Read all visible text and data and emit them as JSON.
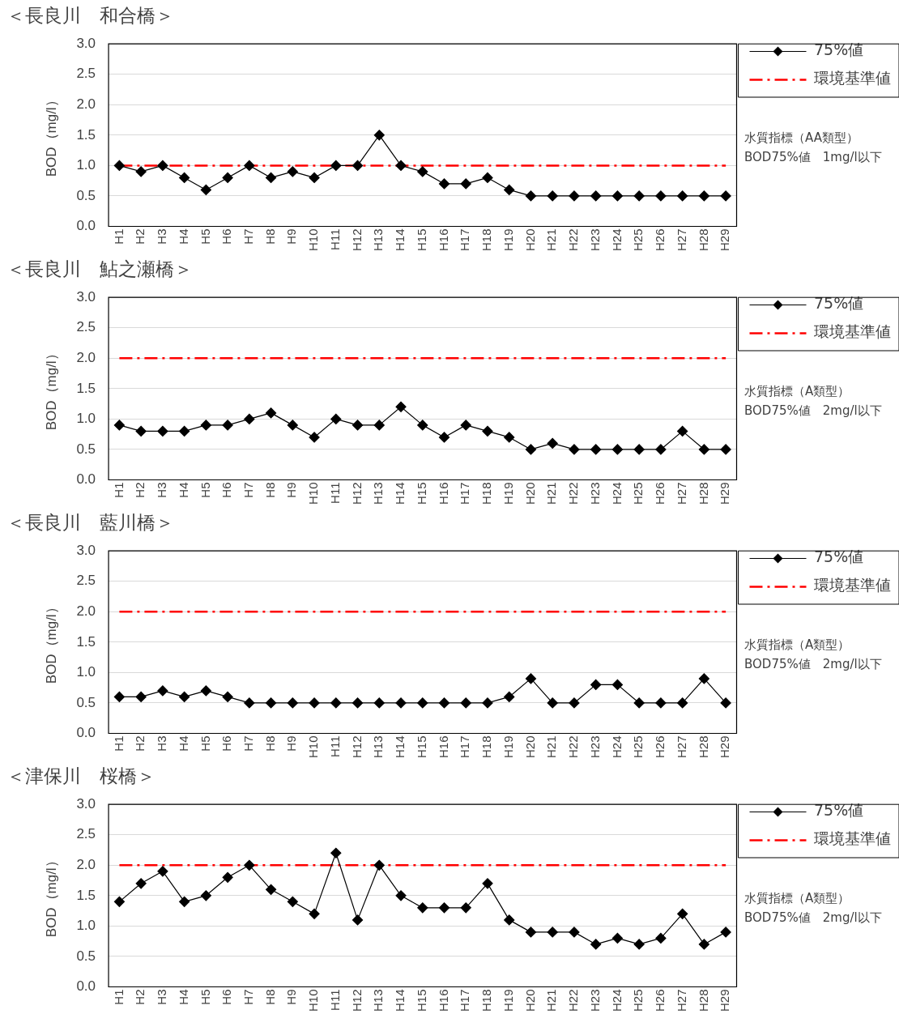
{
  "chart_data": [
    {
      "type": "line",
      "title": "＜長良川　和合橋＞",
      "ylabel": "BOD（mg/l）",
      "categories": [
        "H1",
        "H2",
        "H3",
        "H4",
        "H5",
        "H6",
        "H7",
        "H8",
        "H9",
        "H10",
        "H11",
        "H12",
        "H13",
        "H14",
        "H15",
        "H16",
        "H17",
        "H18",
        "H19",
        "H20",
        "H21",
        "H22",
        "H23",
        "H24",
        "H25",
        "H26",
        "H27",
        "H28",
        "H29"
      ],
      "series": [
        {
          "name": "75%値",
          "color": "#000000",
          "marker": "diamond",
          "values": [
            1.0,
            0.9,
            1.0,
            0.8,
            0.6,
            0.8,
            1.0,
            0.8,
            0.9,
            0.8,
            1.0,
            1.0,
            1.5,
            1.0,
            0.9,
            0.7,
            0.7,
            0.8,
            0.6,
            0.5,
            0.5,
            0.5,
            0.5,
            0.5,
            0.5,
            0.5,
            0.5,
            0.5,
            0.5
          ]
        },
        {
          "name": "環境基準値",
          "color": "#ff0000",
          "marker": "none",
          "line_style": "dashed",
          "values": [
            1.0,
            1.0,
            1.0,
            1.0,
            1.0,
            1.0,
            1.0,
            1.0,
            1.0,
            1.0,
            1.0,
            1.0,
            1.0,
            1.0,
            1.0,
            1.0,
            1.0,
            1.0,
            1.0,
            1.0,
            1.0,
            1.0,
            1.0,
            1.0,
            1.0,
            1.0,
            1.0,
            1.0,
            1.0
          ]
        }
      ],
      "ylim": [
        0,
        3
      ],
      "yticks": [
        {
          "value": 0,
          "label": "0.0"
        },
        {
          "value": 0.5,
          "label": "0.5"
        },
        {
          "value": 1,
          "label": "1.0"
        },
        {
          "value": 1.5,
          "label": "1.5"
        },
        {
          "value": 2,
          "label": "2.0"
        },
        {
          "value": 2.5,
          "label": "2.5"
        },
        {
          "value": 3,
          "label": "3.0"
        }
      ],
      "grid": "y",
      "legend": "right",
      "annotations": [
        "水質指標（AA類型）",
        "BOD75%値　1mg/l以下"
      ]
    },
    {
      "type": "line",
      "title": "＜長良川　鮎之瀬橋＞",
      "ylabel": "BOD（mg/l）",
      "categories": [
        "H1",
        "H2",
        "H3",
        "H4",
        "H5",
        "H6",
        "H7",
        "H8",
        "H9",
        "H10",
        "H11",
        "H12",
        "H13",
        "H14",
        "H15",
        "H16",
        "H17",
        "H18",
        "H19",
        "H20",
        "H21",
        "H22",
        "H23",
        "H24",
        "H25",
        "H26",
        "H27",
        "H28",
        "H29"
      ],
      "series": [
        {
          "name": "75%値",
          "color": "#000000",
          "marker": "diamond",
          "values": [
            0.9,
            0.8,
            0.8,
            0.8,
            0.9,
            0.9,
            1.0,
            1.1,
            0.9,
            0.7,
            1.0,
            0.9,
            0.9,
            1.2,
            0.9,
            0.7,
            0.9,
            0.8,
            0.7,
            0.5,
            0.6,
            0.5,
            0.5,
            0.5,
            0.5,
            0.5,
            0.8,
            0.5,
            0.5
          ]
        },
        {
          "name": "環境基準値",
          "color": "#ff0000",
          "marker": "none",
          "line_style": "dashed",
          "values": [
            2.0,
            2.0,
            2.0,
            2.0,
            2.0,
            2.0,
            2.0,
            2.0,
            2.0,
            2.0,
            2.0,
            2.0,
            2.0,
            2.0,
            2.0,
            2.0,
            2.0,
            2.0,
            2.0,
            2.0,
            2.0,
            2.0,
            2.0,
            2.0,
            2.0,
            2.0,
            2.0,
            2.0,
            2.0
          ]
        }
      ],
      "ylim": [
        0,
        3
      ],
      "yticks": [
        {
          "value": 0,
          "label": "0.0"
        },
        {
          "value": 0.5,
          "label": "0.5"
        },
        {
          "value": 1,
          "label": "1.0"
        },
        {
          "value": 1.5,
          "label": "1.5"
        },
        {
          "value": 2,
          "label": "2.0"
        },
        {
          "value": 2.5,
          "label": "2.5"
        },
        {
          "value": 3,
          "label": "3.0"
        }
      ],
      "grid": "y",
      "legend": "right",
      "annotations": [
        "水質指標（A類型）",
        "BOD75%値　2mg/l以下"
      ]
    },
    {
      "type": "line",
      "title": "＜長良川　藍川橋＞",
      "ylabel": "BOD（mg/l）",
      "categories": [
        "H1",
        "H2",
        "H3",
        "H4",
        "H5",
        "H6",
        "H7",
        "H8",
        "H9",
        "H10",
        "H11",
        "H12",
        "H13",
        "H14",
        "H15",
        "H16",
        "H17",
        "H18",
        "H19",
        "H20",
        "H21",
        "H22",
        "H23",
        "H24",
        "H25",
        "H26",
        "H27",
        "H28",
        "H29"
      ],
      "series": [
        {
          "name": "75%値",
          "color": "#000000",
          "marker": "diamond",
          "values": [
            0.6,
            0.6,
            0.7,
            0.6,
            0.7,
            0.6,
            0.5,
            0.5,
            0.5,
            0.5,
            0.5,
            0.5,
            0.5,
            0.5,
            0.5,
            0.5,
            0.5,
            0.5,
            0.6,
            0.9,
            0.5,
            0.5,
            0.8,
            0.8,
            0.5,
            0.5,
            0.5,
            0.9,
            0.5
          ]
        },
        {
          "name": "環境基準値",
          "color": "#ff0000",
          "marker": "none",
          "line_style": "dashed",
          "values": [
            2.0,
            2.0,
            2.0,
            2.0,
            2.0,
            2.0,
            2.0,
            2.0,
            2.0,
            2.0,
            2.0,
            2.0,
            2.0,
            2.0,
            2.0,
            2.0,
            2.0,
            2.0,
            2.0,
            2.0,
            2.0,
            2.0,
            2.0,
            2.0,
            2.0,
            2.0,
            2.0,
            2.0,
            2.0
          ]
        }
      ],
      "ylim": [
        0,
        3
      ],
      "yticks": [
        {
          "value": 0,
          "label": "0.0"
        },
        {
          "value": 0.5,
          "label": "0.5"
        },
        {
          "value": 1,
          "label": "1.0"
        },
        {
          "value": 1.5,
          "label": "1.5"
        },
        {
          "value": 2,
          "label": "2.0"
        },
        {
          "value": 2.5,
          "label": "2.5"
        },
        {
          "value": 3,
          "label": "3.0"
        }
      ],
      "grid": "y",
      "legend": "right",
      "annotations": [
        "水質指標（A類型）",
        "BOD75%値　2mg/l以下"
      ]
    },
    {
      "type": "line",
      "title": "＜津保川　桜橋＞",
      "ylabel": "BOD（mg/l）",
      "categories": [
        "H1",
        "H2",
        "H3",
        "H4",
        "H5",
        "H6",
        "H7",
        "H8",
        "H9",
        "H10",
        "H11",
        "H12",
        "H13",
        "H14",
        "H15",
        "H16",
        "H17",
        "H18",
        "H19",
        "H20",
        "H21",
        "H22",
        "H23",
        "H24",
        "H25",
        "H26",
        "H27",
        "H28",
        "H29"
      ],
      "series": [
        {
          "name": "75%値",
          "color": "#000000",
          "marker": "diamond",
          "values": [
            1.4,
            1.7,
            1.9,
            1.4,
            1.5,
            1.8,
            2.0,
            1.6,
            1.4,
            1.2,
            2.2,
            1.1,
            2.0,
            1.5,
            1.3,
            1.3,
            1.3,
            1.7,
            1.1,
            0.9,
            0.9,
            0.9,
            0.7,
            0.8,
            0.7,
            0.8,
            1.2,
            0.7,
            0.9
          ]
        },
        {
          "name": "環境基準値",
          "color": "#ff0000",
          "marker": "none",
          "line_style": "dashed",
          "values": [
            2.0,
            2.0,
            2.0,
            2.0,
            2.0,
            2.0,
            2.0,
            2.0,
            2.0,
            2.0,
            2.0,
            2.0,
            2.0,
            2.0,
            2.0,
            2.0,
            2.0,
            2.0,
            2.0,
            2.0,
            2.0,
            2.0,
            2.0,
            2.0,
            2.0,
            2.0,
            2.0,
            2.0,
            2.0
          ]
        }
      ],
      "ylim": [
        0,
        3
      ],
      "yticks": [
        {
          "value": 0,
          "label": "0.0"
        },
        {
          "value": 0.5,
          "label": "0.5"
        },
        {
          "value": 1,
          "label": "1.0"
        },
        {
          "value": 1.5,
          "label": "1.5"
        },
        {
          "value": 2,
          "label": "2.0"
        },
        {
          "value": 2.5,
          "label": "2.5"
        },
        {
          "value": 3,
          "label": "3.0"
        }
      ],
      "grid": "y",
      "legend": "right",
      "annotations": [
        "水質指標（A類型）",
        "BOD75%値　2mg/l以下"
      ]
    }
  ]
}
